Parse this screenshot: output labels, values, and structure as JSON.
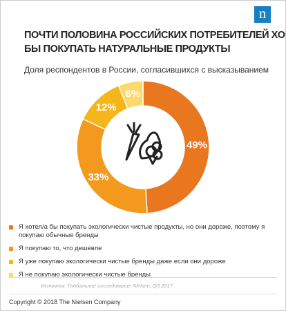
{
  "chart_data": {
    "type": "donut",
    "title": [
      "ПОЧТИ ПОЛОВИНА РОССИЙСКИХ ПОТРЕБИТЕЛЕЙ ХОТЕЛИ",
      "БЫ ПОКУПАТЬ НАТУРАЛЬНЫЕ ПРОДУКТЫ"
    ],
    "subtitle": "Доля респондентов в России, согласившихся с высказыванием",
    "categories": [
      "Я хотел/а бы покупать экологически чистые продукты, но они дороже, поэтому я покупаю обычные бренды",
      "Я покупаю то, что дешевле",
      "Я уже покупаю экологически чистые бренды даже если они дороже",
      "Я не покупаю экологически чистые бренды"
    ],
    "values": [
      49,
      33,
      12,
      6
    ],
    "value_labels": [
      "49%",
      "33%",
      "12%",
      "6%"
    ],
    "colors": [
      "#e8771f",
      "#f39a1e",
      "#f6b619",
      "#fbd96b"
    ],
    "source": "Источник: Глобальное исследование Nielsen, Q3 2017",
    "copyright": "Copyright © 2018 The Nielsen Company",
    "logo": "n"
  }
}
